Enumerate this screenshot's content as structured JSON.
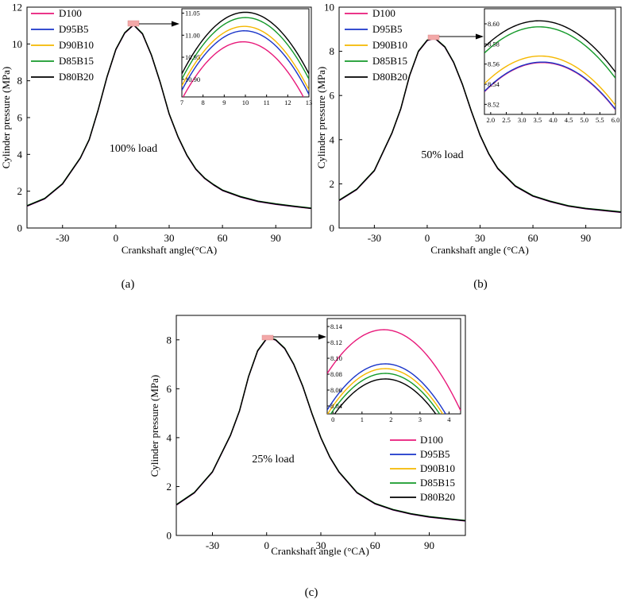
{
  "legend_colors": [
    "#e8197a",
    "#1a35c9",
    "#f5b800",
    "#149a2a",
    "#000000"
  ],
  "chart_data": [
    {
      "type": "line",
      "caption": "(a)",
      "annotation": "100% load",
      "xlabel": "Crankshaft angle(°CA)",
      "ylabel": "Cylinder pressure (MPa)",
      "xlim": [
        -50,
        110
      ],
      "ylim": [
        0,
        12
      ],
      "xticks": [
        -30,
        0,
        30,
        60,
        90
      ],
      "yticks": [
        0,
        2,
        4,
        6,
        8,
        10,
        12
      ],
      "legend_position": "top-left",
      "series_names": [
        "D100",
        "D95B5",
        "D90B10",
        "D85B15",
        "D80B20"
      ],
      "main_curve": {
        "peak_x": 10,
        "peak_y": 11.04,
        "x": [
          -50,
          -40,
          -30,
          -20,
          -15,
          -10,
          -5,
          0,
          5,
          10,
          15,
          20,
          25,
          30,
          35,
          40,
          45,
          50,
          55,
          60,
          70,
          80,
          90,
          100,
          110
        ],
        "y": [
          1.2,
          1.6,
          2.4,
          3.8,
          4.8,
          6.4,
          8.2,
          9.7,
          10.6,
          11.04,
          10.55,
          9.4,
          7.9,
          6.2,
          4.95,
          3.95,
          3.2,
          2.7,
          2.35,
          2.05,
          1.7,
          1.45,
          1.3,
          1.18,
          1.07
        ]
      },
      "inset": {
        "xlim": [
          7,
          13
        ],
        "ylim": [
          10.86,
          11.06
        ],
        "xticks": [
          7,
          8,
          9,
          10,
          11,
          12,
          13
        ],
        "yticks": [
          10.9,
          10.95,
          11.0,
          11.05
        ],
        "ytick_labels": [
          "10.90",
          "10.95",
          "11.00",
          "11.05"
        ],
        "peaks": [
          {
            "name": "D100",
            "x": 9.9,
            "y": 10.985,
            "curv": 0.0155
          },
          {
            "name": "D95B5",
            "x": 9.95,
            "y": 11.01,
            "curv": 0.0155
          },
          {
            "name": "D90B10",
            "x": 9.95,
            "y": 11.02,
            "curv": 0.0155
          },
          {
            "name": "D85B15",
            "x": 10.0,
            "y": 11.04,
            "curv": 0.0155
          },
          {
            "name": "D80B20",
            "x": 10.0,
            "y": 11.052,
            "curv": 0.0155
          }
        ]
      }
    },
    {
      "type": "line",
      "caption": "(b)",
      "annotation": "50% load",
      "xlabel": "Crankshaft angle  (°CA)",
      "ylabel": "Cylinder pressure (MPa)",
      "xlim": [
        -50,
        110
      ],
      "ylim": [
        0,
        10
      ],
      "xticks": [
        -30,
        0,
        30,
        60,
        90
      ],
      "yticks": [
        0,
        2,
        4,
        6,
        8,
        10
      ],
      "legend_position": "top-left",
      "series_names": [
        "D100",
        "D95B5",
        "D90B10",
        "D85B15",
        "D80B20"
      ],
      "main_curve": {
        "peak_x": 3.5,
        "peak_y": 8.58,
        "x": [
          -50,
          -40,
          -30,
          -20,
          -15,
          -10,
          -5,
          0,
          3.5,
          5,
          10,
          15,
          20,
          25,
          30,
          35,
          40,
          50,
          60,
          70,
          80,
          90,
          100,
          110
        ],
        "y": [
          1.25,
          1.75,
          2.6,
          4.3,
          5.4,
          6.9,
          8.0,
          8.5,
          8.58,
          8.55,
          8.2,
          7.5,
          6.5,
          5.3,
          4.2,
          3.35,
          2.7,
          1.9,
          1.45,
          1.2,
          1.0,
          0.88,
          0.8,
          0.72
        ]
      },
      "inset": {
        "xlim": [
          1.8,
          6.0
        ],
        "ylim": [
          8.51,
          8.615
        ],
        "xticks": [
          2.0,
          2.5,
          3.0,
          3.5,
          4.0,
          4.5,
          5.0,
          5.5,
          6.0
        ],
        "xtick_labels": [
          "2.0",
          "2.5",
          "3.0",
          "3.5",
          "4.0",
          "4.5",
          "5.0",
          "5.5",
          "6.0"
        ],
        "yticks": [
          8.52,
          8.54,
          8.56,
          8.58,
          8.6
        ],
        "ytick_labels": [
          "8.52",
          "8.54",
          "8.56",
          "8.58",
          "8.60"
        ],
        "peaks": [
          {
            "name": "D100",
            "x": 3.65,
            "y": 8.5615,
            "curv": 0.0085
          },
          {
            "name": "D95B5",
            "x": 3.65,
            "y": 8.562,
            "curv": 0.0085
          },
          {
            "name": "D90B10",
            "x": 3.6,
            "y": 8.568,
            "curv": 0.0085
          },
          {
            "name": "D85B15",
            "x": 3.55,
            "y": 8.597,
            "curv": 0.0085
          },
          {
            "name": "D80B20",
            "x": 3.55,
            "y": 8.603,
            "curv": 0.0085
          }
        ]
      }
    },
    {
      "type": "line",
      "caption": "(c)",
      "annotation": "25% load",
      "xlabel": "Crankshaft angle (°CA)",
      "ylabel": "Cylinder pressure (MPa)",
      "xlim": [
        -50,
        110
      ],
      "ylim": [
        0,
        9
      ],
      "xticks": [
        -30,
        0,
        30,
        60,
        90
      ],
      "yticks": [
        0,
        2,
        4,
        6,
        8
      ],
      "legend_position": "bottom-right",
      "series_names": [
        "D100",
        "D95B5",
        "D90B10",
        "D85B15",
        "D80B20"
      ],
      "main_curve": {
        "peak_x": 1.5,
        "peak_y": 8.08,
        "x": [
          -50,
          -40,
          -30,
          -20,
          -15,
          -10,
          -5,
          0,
          1.5,
          5,
          10,
          15,
          20,
          25,
          30,
          35,
          40,
          50,
          60,
          70,
          80,
          90,
          100,
          110
        ],
        "y": [
          1.25,
          1.75,
          2.6,
          4.1,
          5.1,
          6.5,
          7.55,
          8.05,
          8.08,
          8.0,
          7.65,
          7.0,
          6.1,
          5.0,
          4.0,
          3.2,
          2.6,
          1.75,
          1.3,
          1.05,
          0.88,
          0.76,
          0.68,
          0.6
        ]
      },
      "inset": {
        "xlim": [
          -0.2,
          4.4
        ],
        "ylim": [
          8.03,
          8.15
        ],
        "xticks": [
          0,
          1,
          2,
          3,
          4
        ],
        "yticks": [
          8.04,
          8.06,
          8.08,
          8.1,
          8.12,
          8.14
        ],
        "ytick_labels": [
          "8.04",
          "8.06",
          "8.08",
          "8.10",
          "8.12",
          "8.14"
        ],
        "peaks": [
          {
            "name": "D100",
            "x": 1.75,
            "y": 8.136,
            "curv": 0.0145
          },
          {
            "name": "D95B5",
            "x": 1.8,
            "y": 8.093,
            "curv": 0.0145
          },
          {
            "name": "D90B10",
            "x": 1.8,
            "y": 8.087,
            "curv": 0.0145
          },
          {
            "name": "D85B15",
            "x": 1.8,
            "y": 8.081,
            "curv": 0.0145
          },
          {
            "name": "D80B20",
            "x": 1.8,
            "y": 8.074,
            "curv": 0.0145
          }
        ]
      }
    }
  ]
}
